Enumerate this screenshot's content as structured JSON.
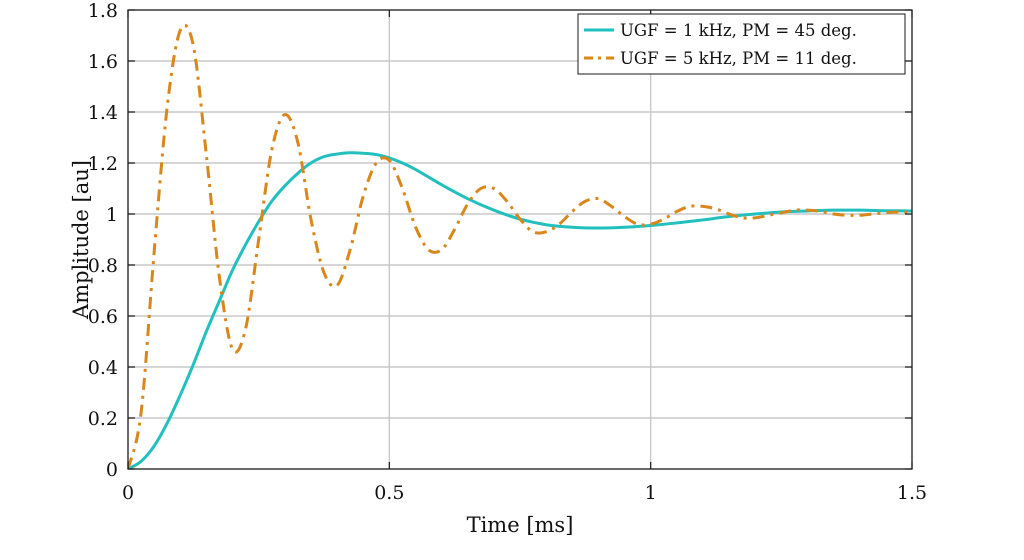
{
  "chart_data": {
    "type": "line",
    "title": "",
    "xlabel": "Time [ms]",
    "ylabel": "Amplitude [au]",
    "xlim": [
      0,
      1.5
    ],
    "ylim": [
      0,
      1.8
    ],
    "xticks": [
      0,
      0.5,
      1,
      1.5
    ],
    "xtick_labels": [
      "0",
      "0.5",
      "1",
      "1.5"
    ],
    "yticks": [
      0,
      0.2,
      0.4,
      0.6,
      0.8,
      1,
      1.2,
      1.4,
      1.6,
      1.8
    ],
    "ytick_labels": [
      "0",
      "0.2",
      "0.4",
      "0.6",
      "0.8",
      "1",
      "1.2",
      "1.4",
      "1.6",
      "1.8"
    ],
    "grid": true,
    "legend_position": "top-right",
    "series": [
      {
        "name": "UGF = 1 kHz, PM = 45 deg.",
        "color": "#22bfbf",
        "style": "solid",
        "x": [
          0,
          0.025,
          0.05,
          0.075,
          0.1,
          0.125,
          0.15,
          0.175,
          0.2,
          0.225,
          0.25,
          0.275,
          0.3,
          0.325,
          0.35,
          0.375,
          0.4,
          0.425,
          0.45,
          0.475,
          0.5,
          0.525,
          0.55,
          0.6,
          0.65,
          0.7,
          0.75,
          0.8,
          0.85,
          0.9,
          0.95,
          1.0,
          1.05,
          1.1,
          1.15,
          1.2,
          1.25,
          1.3,
          1.35,
          1.4,
          1.45,
          1.5
        ],
        "y": [
          0,
          0.03,
          0.09,
          0.18,
          0.29,
          0.41,
          0.54,
          0.66,
          0.78,
          0.88,
          0.97,
          1.05,
          1.11,
          1.16,
          1.2,
          1.225,
          1.235,
          1.24,
          1.238,
          1.233,
          1.22,
          1.2,
          1.175,
          1.115,
          1.06,
          1.015,
          0.98,
          0.958,
          0.948,
          0.945,
          0.948,
          0.955,
          0.965,
          0.977,
          0.99,
          1.0,
          1.008,
          1.012,
          1.015,
          1.015,
          1.013,
          1.012
        ]
      },
      {
        "name": "UGF = 5 kHz, PM = 11 deg.",
        "color": "#d9861a",
        "style": "dash-dot",
        "x": [
          0,
          0.025,
          0.05,
          0.075,
          0.1,
          0.125,
          0.15,
          0.175,
          0.2,
          0.225,
          0.25,
          0.275,
          0.3,
          0.325,
          0.35,
          0.375,
          0.4,
          0.425,
          0.45,
          0.475,
          0.5,
          0.525,
          0.55,
          0.575,
          0.6,
          0.625,
          0.65,
          0.675,
          0.7,
          0.725,
          0.75,
          0.775,
          0.8,
          0.825,
          0.85,
          0.875,
          0.9,
          0.925,
          0.95,
          0.975,
          1.0,
          1.025,
          1.05,
          1.075,
          1.1,
          1.125,
          1.15,
          1.175,
          1.2,
          1.225,
          1.25,
          1.275,
          1.3,
          1.325,
          1.35,
          1.375,
          1.4,
          1.425,
          1.45,
          1.475,
          1.5
        ],
        "y": [
          0,
          0.22,
          0.85,
          1.42,
          1.72,
          1.66,
          1.23,
          0.75,
          0.47,
          0.55,
          0.9,
          1.25,
          1.39,
          1.28,
          0.98,
          0.77,
          0.72,
          0.86,
          1.07,
          1.2,
          1.21,
          1.1,
          0.95,
          0.86,
          0.86,
          0.94,
          1.04,
          1.1,
          1.1,
          1.05,
          0.98,
          0.93,
          0.93,
          0.96,
          1.01,
          1.05,
          1.06,
          1.03,
          0.99,
          0.96,
          0.96,
          0.98,
          1.01,
          1.03,
          1.03,
          1.02,
          1.0,
          0.985,
          0.985,
          0.995,
          1.005,
          1.015,
          1.015,
          1.01,
          1.0,
          0.995,
          0.995,
          1.0,
          1.005,
          1.008,
          1.005
        ]
      }
    ]
  }
}
